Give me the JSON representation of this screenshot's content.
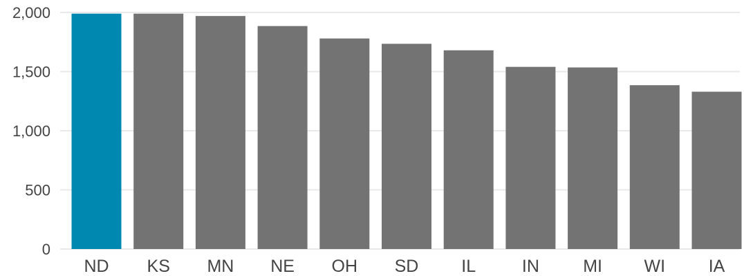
{
  "chart_data": {
    "type": "bar",
    "title": "",
    "xlabel": "",
    "ylabel": "",
    "categories": [
      "ND",
      "KS",
      "MN",
      "NE",
      "OH",
      "SD",
      "IL",
      "IN",
      "MI",
      "WI",
      "IA"
    ],
    "values": [
      1990,
      1990,
      1970,
      1885,
      1780,
      1735,
      1680,
      1540,
      1535,
      1385,
      1330
    ],
    "ylim": [
      0,
      2000
    ],
    "yticks": [
      0,
      500,
      1000,
      1500,
      2000
    ],
    "ytick_labels": [
      "0",
      "500",
      "1,000",
      "1,500",
      "2,000"
    ],
    "grid": true,
    "colors": {
      "highlight": "#0088b0",
      "bar": "#737373",
      "grid": "#e9e9e9",
      "text": "#444444"
    },
    "highlight_category": "ND"
  }
}
